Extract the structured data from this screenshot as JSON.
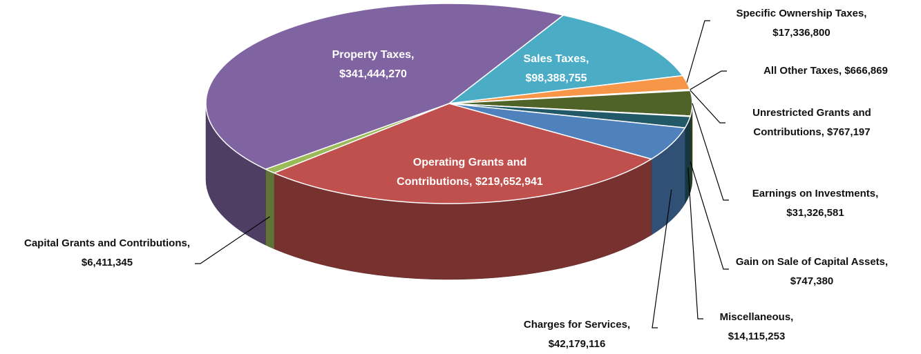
{
  "chart_data": {
    "type": "pie",
    "categories": [
      "Sales Taxes,",
      "Specific Ownership Taxes,",
      "All Other Taxes,",
      "Unrestricted Grants and Contributions,",
      "Earnings on Investments,",
      "Gain on Sale of Capital Assets,",
      "Miscellaneous,",
      "Charges for Services,",
      "Operating Grants and Contributions,",
      "Capital Grants and Contributions,",
      "Property Taxes,"
    ],
    "values": [
      98388755,
      17336800,
      666869,
      767197,
      31326581,
      747380,
      14115253,
      42179116,
      219652941,
      6411345,
      341444270
    ],
    "value_labels": [
      "$98,388,755",
      "$17,336,800",
      "$666,869",
      "$767,197",
      "$31,326,581",
      "$747,380",
      "$14,115,253",
      "$42,179,116",
      "$219,652,941",
      "$6,411,345",
      "$341,444,270"
    ],
    "colors": [
      "#4bacc6",
      "#f79646",
      "#1f497d",
      "#4f6228",
      "#4f6228",
      "#31859c",
      "#215968",
      "#4f81bd",
      "#c0504d",
      "#9bbb59",
      "#8064a2"
    ]
  }
}
